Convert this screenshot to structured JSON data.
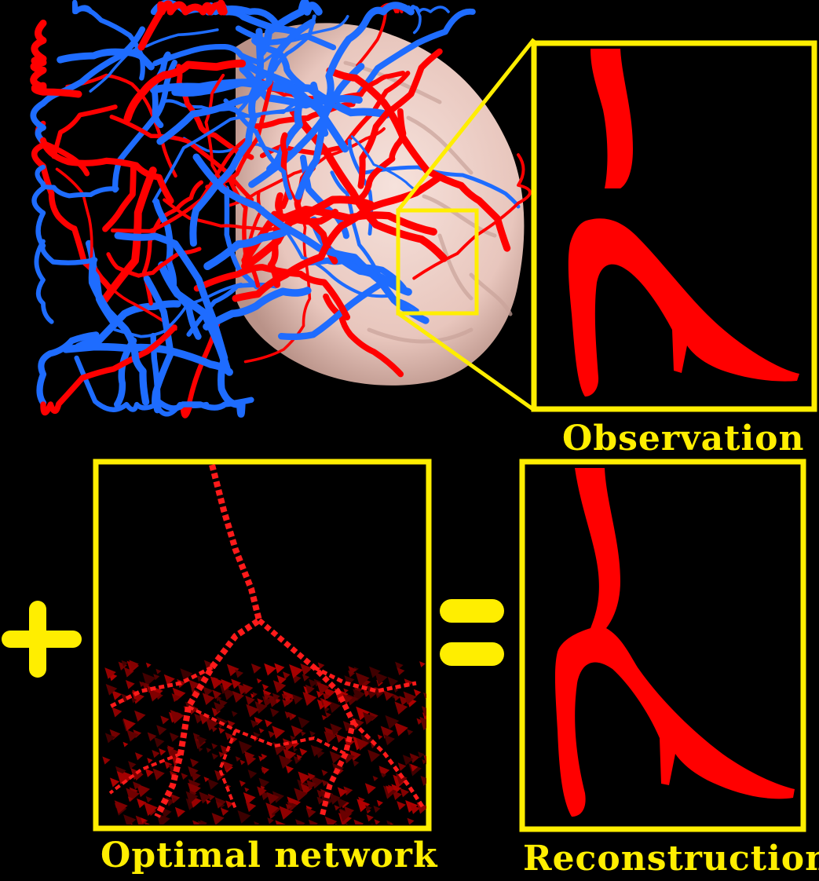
{
  "colors": {
    "background": "#000000",
    "frame": "#ffee00",
    "artery": "#ff0000",
    "vein": "#1e6cff",
    "brain": "#f1d6cf",
    "network": "#ff1a1a"
  },
  "operators": {
    "plus": "plus-sign",
    "equals": "equals-sign"
  },
  "labels": {
    "observation": "Observation",
    "optimal_network": "Optimal network",
    "reconstruction": "Reconstruction"
  }
}
